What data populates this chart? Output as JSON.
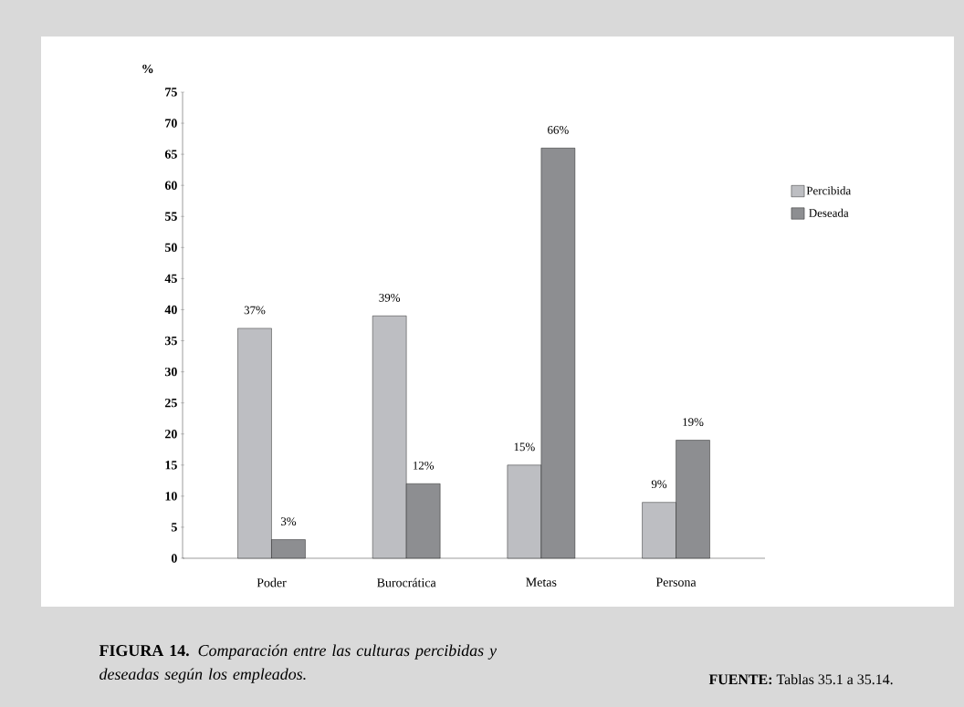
{
  "chart_data": {
    "type": "bar",
    "title": "**FIGURA 14.** *Comparación entre las culturas percibidas y deseadas según los empleados.*",
    "ylabel": "%",
    "categories": [
      "Poder",
      "Burocrática",
      "Metas",
      "Persona"
    ],
    "series": [
      {
        "name": "Percibida",
        "color": "#bdbec2",
        "values": [
          37,
          39,
          15,
          9
        ],
        "value_labels": [
          "37%",
          "39%",
          "15%",
          "9%"
        ]
      },
      {
        "name": "Deseada",
        "color": "#8d8e91",
        "values": [
          3,
          12,
          66,
          19
        ],
        "value_labels": [
          "3%",
          "12%",
          "66%",
          "19%"
        ]
      }
    ],
    "ylim": [
      0,
      75
    ],
    "yticks": [
      0,
      5,
      10,
      15,
      20,
      25,
      30,
      35,
      40,
      45,
      50,
      55,
      60,
      65,
      70,
      75
    ],
    "legend": "right",
    "annotations": [
      "**FUENTE:** Tablas 35.1 a 35.14."
    ]
  }
}
